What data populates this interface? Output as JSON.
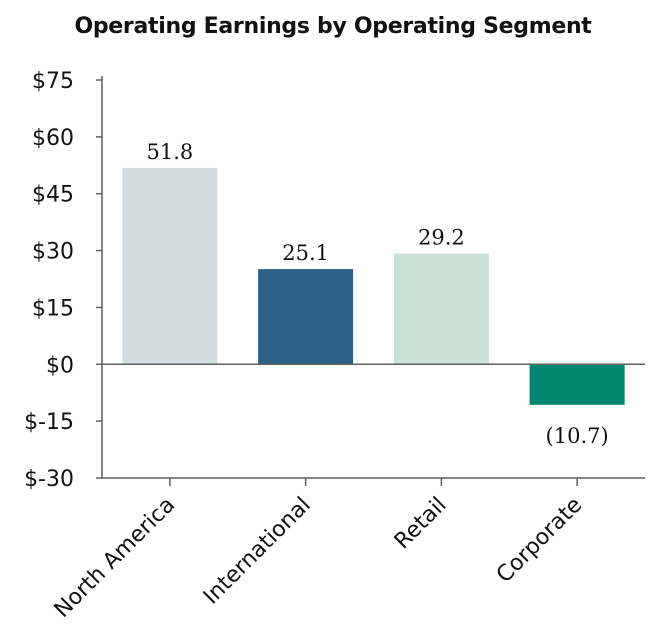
{
  "chart_data": {
    "type": "bar",
    "title": "Operating Earnings by Operating Segment",
    "categories": [
      "North America",
      "International",
      "Retail",
      "Corporate"
    ],
    "values": [
      51.8,
      25.1,
      29.2,
      -10.7
    ],
    "data_labels": [
      "51.8",
      "25.1",
      "29.2",
      "(10.7)"
    ],
    "bar_colors": [
      "#d1dcdf",
      "#2a6089",
      "#c9e2d8",
      "#008671"
    ],
    "ylim": [
      -30,
      75
    ],
    "yticks": [
      75,
      60,
      45,
      30,
      15,
      0,
      -15,
      -30
    ],
    "ytick_labels": [
      "$75",
      "$60",
      "$45",
      "$30",
      "$15",
      "$0",
      "$-15",
      "$-30"
    ],
    "xlabel": "",
    "ylabel": "",
    "grid": false,
    "axis_color": "#5f5f5f"
  }
}
